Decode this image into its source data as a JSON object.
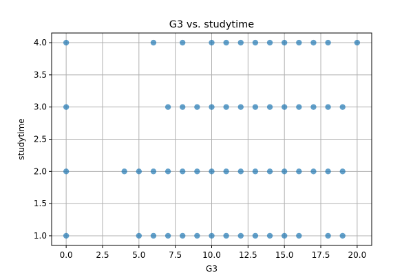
{
  "chart_data": {
    "type": "scatter",
    "title": "G3 vs. studytime",
    "xlabel": "G3",
    "ylabel": "studytime",
    "xlim": [
      -1.0,
      21.0
    ],
    "ylim": [
      0.85,
      4.15
    ],
    "xticks": [
      0.0,
      2.5,
      5.0,
      7.5,
      10.0,
      12.5,
      15.0,
      17.5,
      20.0
    ],
    "xtick_labels": [
      "0.0",
      "2.5",
      "5.0",
      "7.5",
      "10.0",
      "12.5",
      "15.0",
      "17.5",
      "20.0"
    ],
    "yticks": [
      1.0,
      1.5,
      2.0,
      2.5,
      3.0,
      3.5,
      4.0
    ],
    "ytick_labels": [
      "1.0",
      "1.5",
      "2.0",
      "2.5",
      "3.0",
      "3.5",
      "4.0"
    ],
    "grid": true,
    "color": "#1f77b4",
    "series": [
      {
        "points": [
          {
            "x": 0,
            "y": 4
          },
          {
            "x": 6,
            "y": 4
          },
          {
            "x": 8,
            "y": 4
          },
          {
            "x": 10,
            "y": 4
          },
          {
            "x": 11,
            "y": 4
          },
          {
            "x": 12,
            "y": 4
          },
          {
            "x": 13,
            "y": 4
          },
          {
            "x": 14,
            "y": 4
          },
          {
            "x": 15,
            "y": 4
          },
          {
            "x": 16,
            "y": 4
          },
          {
            "x": 17,
            "y": 4
          },
          {
            "x": 18,
            "y": 4
          },
          {
            "x": 20,
            "y": 4
          },
          {
            "x": 0,
            "y": 3
          },
          {
            "x": 7,
            "y": 3
          },
          {
            "x": 8,
            "y": 3
          },
          {
            "x": 9,
            "y": 3
          },
          {
            "x": 10,
            "y": 3
          },
          {
            "x": 11,
            "y": 3
          },
          {
            "x": 12,
            "y": 3
          },
          {
            "x": 13,
            "y": 3
          },
          {
            "x": 14,
            "y": 3
          },
          {
            "x": 15,
            "y": 3
          },
          {
            "x": 16,
            "y": 3
          },
          {
            "x": 17,
            "y": 3
          },
          {
            "x": 18,
            "y": 3
          },
          {
            "x": 19,
            "y": 3
          },
          {
            "x": 0,
            "y": 2
          },
          {
            "x": 4,
            "y": 2
          },
          {
            "x": 5,
            "y": 2
          },
          {
            "x": 6,
            "y": 2
          },
          {
            "x": 7,
            "y": 2
          },
          {
            "x": 8,
            "y": 2
          },
          {
            "x": 9,
            "y": 2
          },
          {
            "x": 10,
            "y": 2
          },
          {
            "x": 11,
            "y": 2
          },
          {
            "x": 12,
            "y": 2
          },
          {
            "x": 13,
            "y": 2
          },
          {
            "x": 14,
            "y": 2
          },
          {
            "x": 15,
            "y": 2
          },
          {
            "x": 16,
            "y": 2
          },
          {
            "x": 17,
            "y": 2
          },
          {
            "x": 18,
            "y": 2
          },
          {
            "x": 19,
            "y": 2
          },
          {
            "x": 0,
            "y": 1
          },
          {
            "x": 5,
            "y": 1
          },
          {
            "x": 6,
            "y": 1
          },
          {
            "x": 7,
            "y": 1
          },
          {
            "x": 8,
            "y": 1
          },
          {
            "x": 9,
            "y": 1
          },
          {
            "x": 10,
            "y": 1
          },
          {
            "x": 11,
            "y": 1
          },
          {
            "x": 12,
            "y": 1
          },
          {
            "x": 13,
            "y": 1
          },
          {
            "x": 14,
            "y": 1
          },
          {
            "x": 15,
            "y": 1
          },
          {
            "x": 16,
            "y": 1
          },
          {
            "x": 18,
            "y": 1
          },
          {
            "x": 19,
            "y": 1
          }
        ]
      }
    ]
  }
}
